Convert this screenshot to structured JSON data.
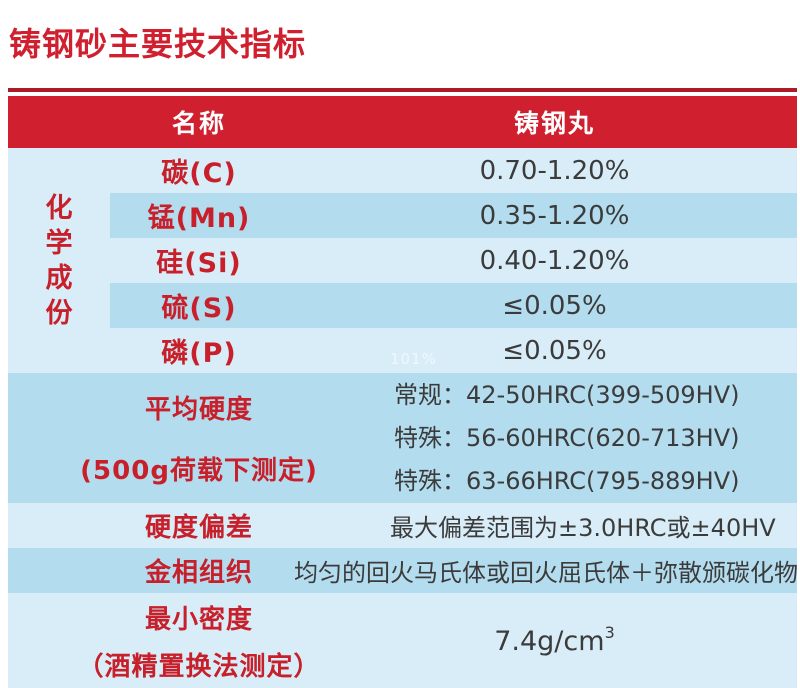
{
  "title": "铸钢砂主要技术指标",
  "watermark": "101%",
  "colors": {
    "header_red": "#d0202f",
    "label_red": "#c7202a",
    "row_light": "#d9edf8",
    "row_dark": "#b3dcee",
    "value_text": "#3b3b3b"
  },
  "table": {
    "header": {
      "name": "名称",
      "value": "铸钢丸"
    },
    "chem": {
      "group_label": "化\n学\n成\n份",
      "rows": [
        {
          "name": "碳(C)",
          "value": "0.70-1.20%"
        },
        {
          "name": "锰(Mn)",
          "value": "0.35-1.20%"
        },
        {
          "name": "硅(Si)",
          "value": "0.40-1.20%"
        },
        {
          "name": "硫(S)",
          "value": "≤0.05%"
        },
        {
          "name": "磷(P)",
          "value": "≤0.05%"
        }
      ]
    },
    "hardness": {
      "label_line1": "平均硬度",
      "label_line2": "(500g荷载下测定)",
      "lines": [
        "常规：42-50HRC(399-509HV)",
        "特殊：56-60HRC(620-713HV)",
        "特殊：63-66HRC(795-889HV)"
      ]
    },
    "deviation": {
      "label": "硬度偏差",
      "value": "最大偏差范围为±3.0HRC或±40HV"
    },
    "metallography": {
      "label": "金相组织",
      "value": "均匀的回火马氏体或回火屈氏体＋弥散颁碳化物"
    },
    "density": {
      "label_line1": "最小密度",
      "label_line2": "（酒精置换法测定）",
      "value_base": "7.4g/cm",
      "value_sup": "3"
    }
  }
}
